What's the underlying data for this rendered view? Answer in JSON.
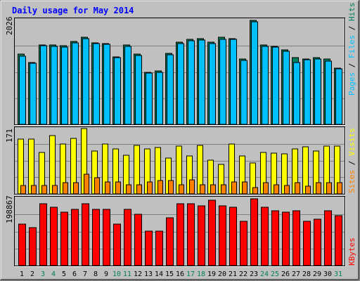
{
  "chart_data": {
    "type": "bar",
    "title": "Daily usage for May 2014",
    "categories": [
      "1",
      "2",
      "3",
      "4",
      "5",
      "6",
      "7",
      "8",
      "9",
      "10",
      "11",
      "12",
      "13",
      "14",
      "15",
      "16",
      "17",
      "18",
      "19",
      "20",
      "21",
      "22",
      "23",
      "24",
      "25",
      "26",
      "27",
      "28",
      "29",
      "30",
      "31"
    ],
    "weekend_days": [
      "3",
      "4",
      "10",
      "11",
      "17",
      "18",
      "24",
      "25",
      "31"
    ],
    "top_panel": {
      "max_label": "2026",
      "ymax": 2026,
      "axis_label": {
        "pages": "Pages",
        "files": "Files",
        "hits": "Hits",
        "separator": " / "
      },
      "series": [
        {
          "name": "Hits",
          "color": "#00805c",
          "values": [
            1360,
            1200,
            1540,
            1530,
            1520,
            1600,
            1690,
            1580,
            1570,
            1310,
            1530,
            1360,
            1010,
            1030,
            1380,
            1590,
            1650,
            1660,
            1590,
            1680,
            1660,
            1270,
            2010,
            1540,
            1510,
            1440,
            1290,
            1270,
            1290,
            1260,
            1090
          ]
        },
        {
          "name": "Files",
          "color": "#00c0ff",
          "values": [
            1320,
            1180,
            1520,
            1510,
            1490,
            1580,
            1660,
            1560,
            1550,
            1290,
            1510,
            1330,
            990,
            1010,
            1350,
            1560,
            1620,
            1630,
            1560,
            1650,
            1640,
            1240,
            1980,
            1510,
            1490,
            1410,
            1200,
            1250,
            1260,
            1230,
            1070
          ]
        }
      ]
    },
    "middle_panel": {
      "max_label": "171",
      "ymax": 171,
      "axis_label": {
        "sites": "Sites",
        "visits": "Visits",
        "separator": " / "
      },
      "series": [
        {
          "name": "Visits",
          "color": "#ffff00",
          "values": [
            140,
            141,
            106,
            150,
            127,
            143,
            167,
            110,
            127,
            115,
            99,
            124,
            116,
            118,
            92,
            123,
            98,
            124,
            86,
            76,
            128,
            98,
            79,
            107,
            105,
            103,
            115,
            121,
            110,
            122,
            122
          ]
        },
        {
          "name": "Sites",
          "color": "#ff8000",
          "values": [
            22,
            22,
            22,
            22,
            28,
            28,
            50,
            42,
            31,
            30,
            23,
            24,
            31,
            35,
            35,
            24,
            36,
            23,
            24,
            24,
            31,
            31,
            17,
            29,
            23,
            21,
            29,
            20,
            28,
            29,
            29
          ]
        }
      ]
    },
    "bottom_panel": {
      "max_label": "198867",
      "ymax": 198867,
      "axis_label": "KBytes",
      "series": [
        {
          "name": "KBytes",
          "color": "#ff0000",
          "values": [
            120000,
            110000,
            180000,
            170000,
            155000,
            165000,
            180000,
            165000,
            165000,
            120000,
            165000,
            150000,
            100000,
            100000,
            140000,
            180000,
            180000,
            175000,
            190000,
            175000,
            170000,
            130000,
            195000,
            170000,
            160000,
            155000,
            160000,
            130000,
            135000,
            160000,
            145000
          ]
        }
      ]
    },
    "colors": {
      "background": "#c0c0c0",
      "title": "#0000ff",
      "weekday_label": "#000000",
      "weekend_label": "#00805c",
      "grid": "#808080"
    }
  }
}
